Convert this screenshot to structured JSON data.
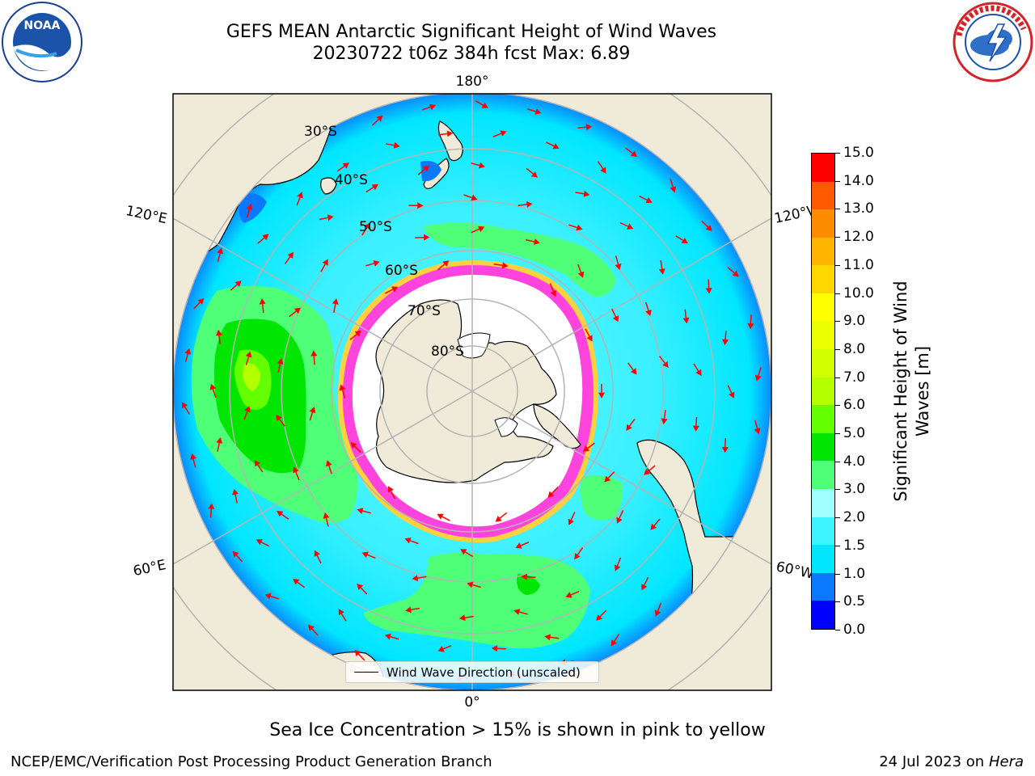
{
  "header": {
    "title_line1": "GEFS MEAN Antarctic Significant Height of Wind Waves",
    "title_line2": "20230722 t06z 384h fcst   Max: 6.89"
  },
  "logos": {
    "left": "noaa-logo",
    "right": "national-weather-service-logo",
    "left_text": "NOAA",
    "right_text": "NATIONAL WEATHER SERVICE"
  },
  "map": {
    "projection": "south-polar-stereographic",
    "longitude_labels": {
      "top": "180°",
      "bottom": "0°",
      "upper_left": "120°E",
      "upper_right": "120°W",
      "lower_left": "60°E",
      "lower_right": "60°W"
    },
    "latitude_labels": [
      "30°S",
      "40°S",
      "50°S",
      "60°S",
      "70°S",
      "80°S"
    ],
    "colors": {
      "land": "#efebd8",
      "ice_shelf": "#ffffff",
      "graticule": "#b4b4b4",
      "arrow": "#ff0000",
      "sea_ice_edge_pink": "#ff44dd",
      "sea_ice_edge_yellow": "#ffd040"
    }
  },
  "legend": {
    "label": "Wind Wave Direction (unscaled)"
  },
  "colorbar": {
    "title": "Significant Height of Wind Waves [m]",
    "ticks": [
      "0.0",
      "0.5",
      "1.0",
      "1.5",
      "2.0",
      "3.0",
      "4.0",
      "5.0",
      "6.0",
      "7.0",
      "8.0",
      "9.0",
      "10.0",
      "11.0",
      "12.0",
      "13.0",
      "14.0",
      "15.0"
    ],
    "colors": [
      "#0000ff",
      "#0a78ff",
      "#00e6ff",
      "#3cf5ff",
      "#a0ffff",
      "#50ff78",
      "#00e600",
      "#64ff00",
      "#b4ff00",
      "#d2ff00",
      "#ecff00",
      "#ffff00",
      "#ffd700",
      "#ffb400",
      "#ff8c00",
      "#ff5a00",
      "#ff0000"
    ]
  },
  "note": "Sea Ice Concentration > 15% is shown in pink to yellow",
  "footer": {
    "left": "NCEP/EMC/Verification Post Processing Product Generation Branch",
    "right_date": "24 Jul 2023 on ",
    "right_machine": "Hera"
  }
}
